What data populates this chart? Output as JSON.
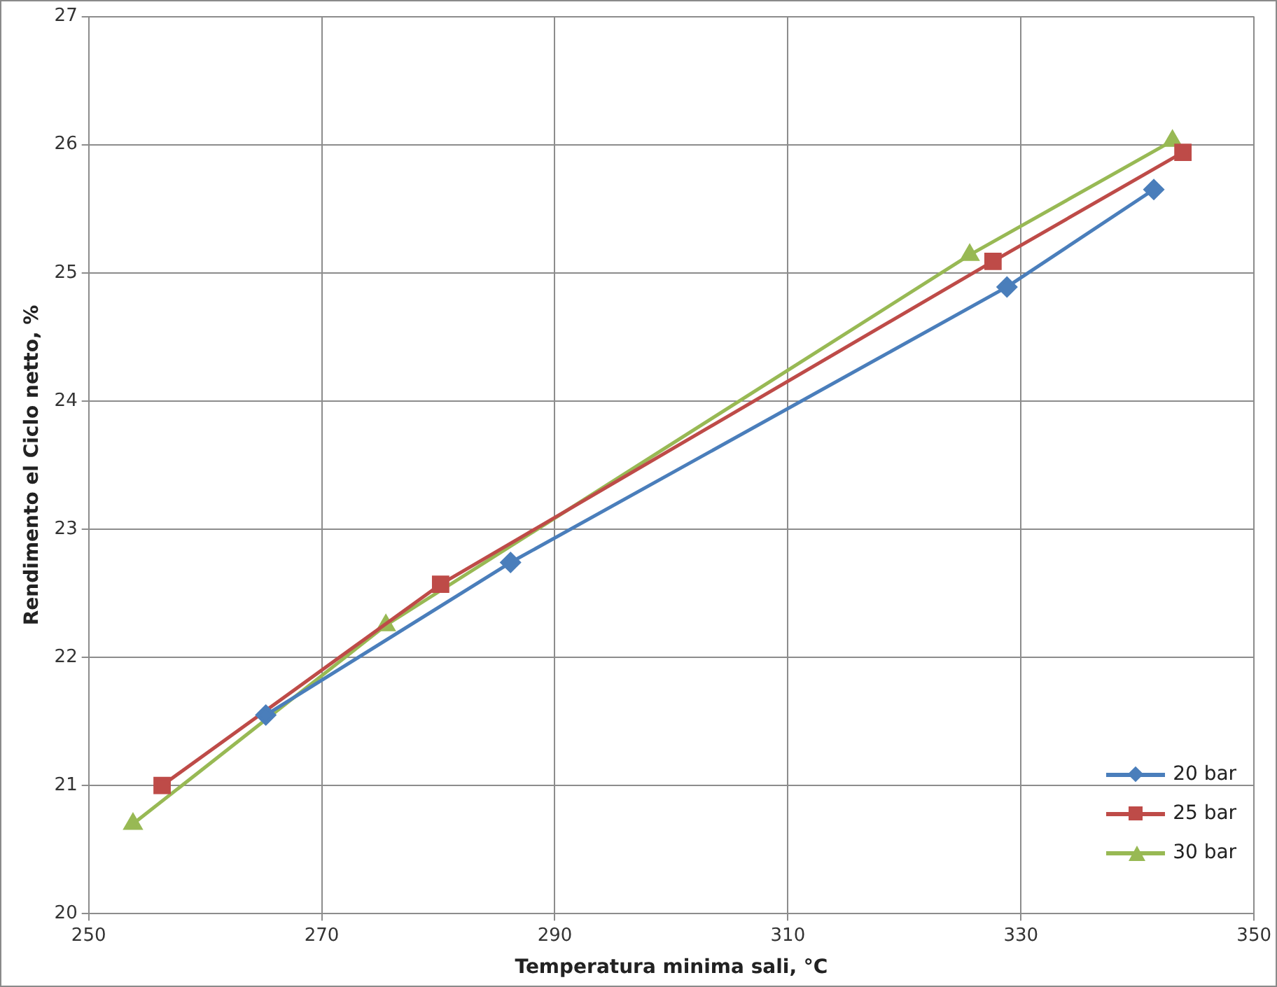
{
  "chart_data": {
    "type": "line",
    "xlabel": "Temperatura minima sali, °C",
    "ylabel": "Rendimento el Ciclo netto, %",
    "xlim": [
      250,
      350
    ],
    "xticks": [
      250,
      270,
      290,
      310,
      330,
      350
    ],
    "ylim": [
      20,
      27
    ],
    "yticks": [
      20,
      21,
      22,
      23,
      24,
      25,
      26,
      27
    ],
    "grid": true,
    "legend": "bottom right",
    "line_style": "solid",
    "series": [
      {
        "name": "20 bar",
        "color": "#4a7ebb",
        "marker": "diamond",
        "x": [
          265.2,
          286.2,
          328.8,
          341.4
        ],
        "values": [
          21.55,
          22.74,
          24.89,
          25.65
        ]
      },
      {
        "name": "25 bar",
        "color": "#be4b48",
        "marker": "square",
        "x": [
          256.3,
          280.2,
          327.6,
          343.9
        ],
        "values": [
          21.0,
          22.57,
          25.09,
          25.94
        ]
      },
      {
        "name": "30 bar",
        "color": "#98b954",
        "marker": "triangle",
        "x": [
          253.8,
          275.5,
          325.6,
          343.0
        ],
        "values": [
          20.7,
          22.25,
          25.14,
          26.03
        ]
      }
    ]
  }
}
